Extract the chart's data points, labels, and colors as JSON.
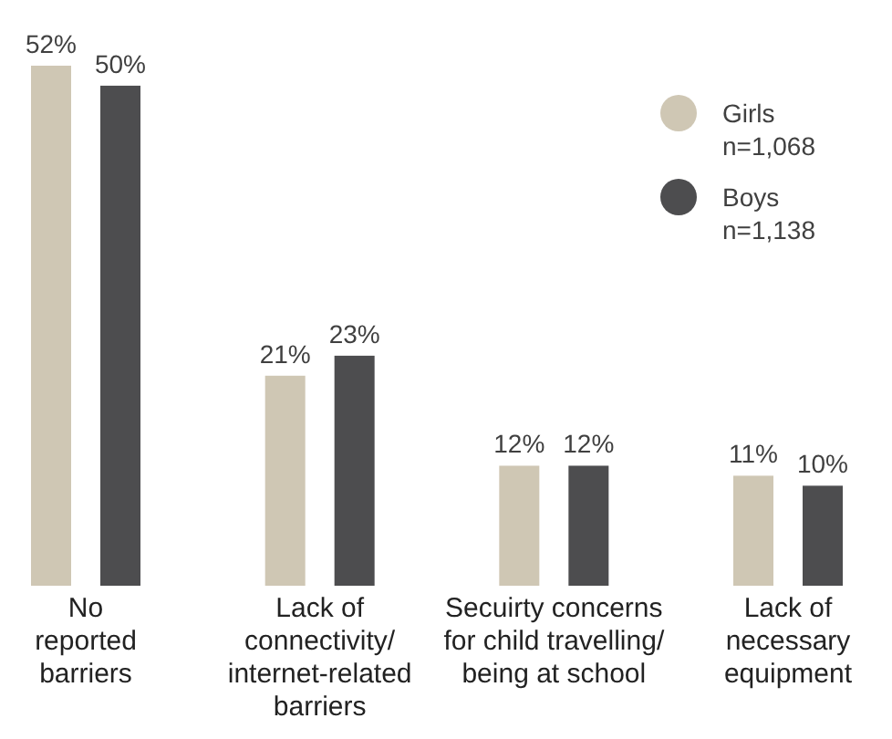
{
  "chart_data": {
    "type": "bar",
    "categories": [
      "No\nreported\nbarriers",
      "Lack of\nconnectivity/\ninternet-related\nbarriers",
      "Secuirty concerns\nfor child travelling/\nbeing at school",
      "Lack of\nnecessary\nequipment"
    ],
    "series": [
      {
        "name": "Girls\nn=1,068",
        "color": "#cfc7b4",
        "values": [
          52,
          21,
          12,
          11
        ],
        "value_labels": [
          "52%",
          "21%",
          "12%",
          "11%"
        ]
      },
      {
        "name": "Boys\nn=1,138",
        "color": "#4d4d4f",
        "values": [
          50,
          23,
          12,
          10
        ],
        "value_labels": [
          "50%",
          "23%",
          "12%",
          "10%"
        ]
      }
    ],
    "legend": "top right"
  }
}
